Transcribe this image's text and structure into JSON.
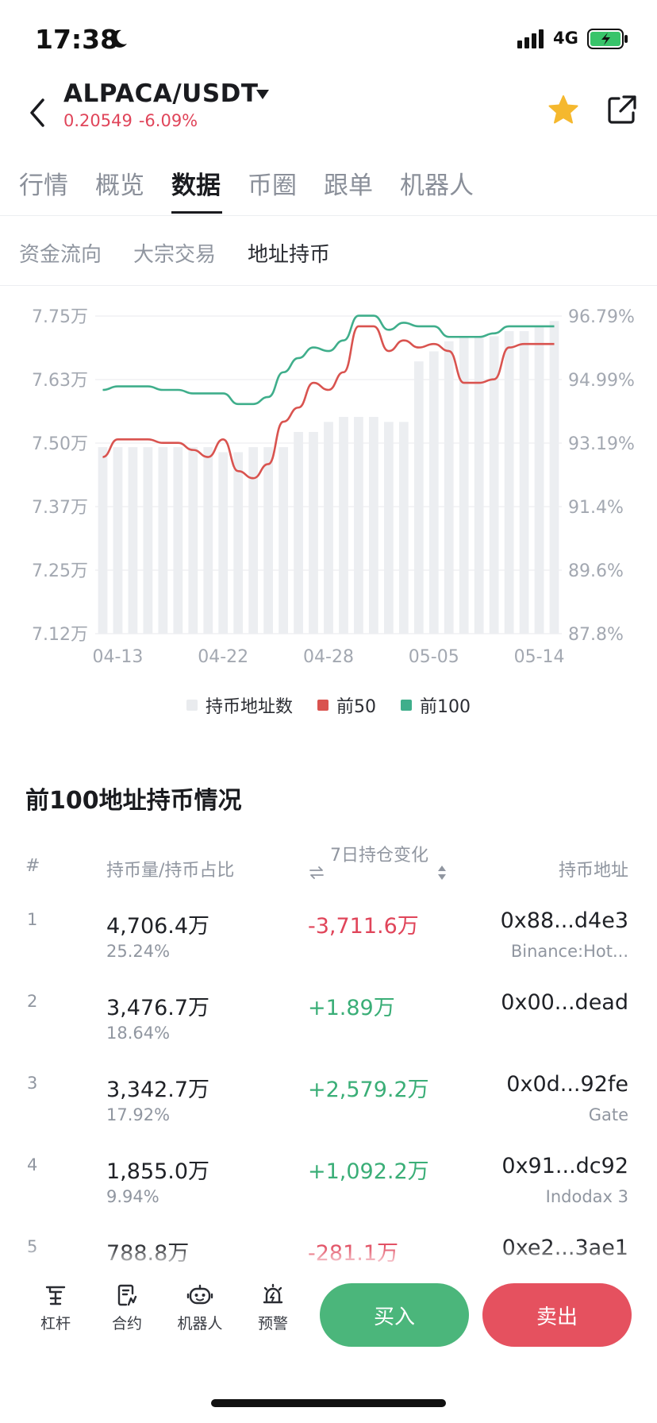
{
  "status_bar": {
    "time": "17:38",
    "network": "4G"
  },
  "header": {
    "pair": "ALPACA/USDT",
    "price": "0.20549",
    "change": "-6.09%"
  },
  "main_tabs": [
    "行情",
    "概览",
    "数据",
    "币圈",
    "跟单",
    "机器人"
  ],
  "sub_tabs": [
    "资金流向",
    "大宗交易",
    "地址持币"
  ],
  "colors": {
    "bar": "#eceef1",
    "top50": "#d9534f",
    "top100": "#3fae8b",
    "positive": "#3aae77",
    "negative": "#e0455a",
    "buy": "#4bb67b",
    "sell": "#e5515f"
  },
  "chart_data": {
    "type": "bar",
    "left_axis": {
      "ticks": [
        "7.12万",
        "7.25万",
        "7.37万",
        "7.50万",
        "7.63万",
        "7.75万"
      ],
      "ylim": [
        7.12,
        7.75
      ]
    },
    "right_axis": {
      "ticks": [
        "87.8%",
        "89.6%",
        "91.4%",
        "93.19%",
        "94.99%",
        "96.79%"
      ],
      "ylim": [
        87.8,
        96.79
      ]
    },
    "x_ticks": [
      "04-13",
      "04-22",
      "04-28",
      "05-05",
      "05-14"
    ],
    "categories_count": 31,
    "series": [
      {
        "name": "持币地址数",
        "type": "bar",
        "axis": "left",
        "values": [
          7.49,
          7.49,
          7.49,
          7.49,
          7.49,
          7.49,
          7.49,
          7.49,
          7.48,
          7.48,
          7.49,
          7.49,
          7.49,
          7.52,
          7.52,
          7.54,
          7.55,
          7.55,
          7.55,
          7.54,
          7.54,
          7.66,
          7.68,
          7.7,
          7.71,
          7.71,
          7.71,
          7.72,
          7.72,
          7.73,
          7.74
        ]
      },
      {
        "name": "前50",
        "type": "line",
        "axis": "right",
        "values": [
          92.8,
          93.3,
          93.3,
          93.3,
          93.2,
          93.2,
          93.0,
          92.8,
          93.3,
          92.4,
          92.2,
          92.6,
          93.8,
          94.2,
          94.9,
          94.7,
          95.2,
          96.5,
          96.5,
          95.8,
          96.1,
          95.9,
          96.0,
          95.8,
          94.9,
          94.9,
          95.0,
          95.9,
          96.0,
          96.0,
          96.0
        ]
      },
      {
        "name": "前100",
        "type": "line",
        "axis": "right",
        "values": [
          94.7,
          94.8,
          94.8,
          94.8,
          94.7,
          94.7,
          94.6,
          94.6,
          94.6,
          94.3,
          94.3,
          94.5,
          95.2,
          95.6,
          95.9,
          95.8,
          96.1,
          96.8,
          96.8,
          96.4,
          96.6,
          96.5,
          96.5,
          96.2,
          96.2,
          96.2,
          96.3,
          96.5,
          96.5,
          96.5,
          96.5
        ]
      }
    ]
  },
  "holders": {
    "title": "前100地址持币情况",
    "columns": {
      "rank": "#",
      "amount": "持币量/持币占比",
      "change": "7日持仓变化",
      "address": "持币地址"
    },
    "rows": [
      {
        "rank": "1",
        "amount": "4,706.4万",
        "pct": "25.24%",
        "change": "-3,711.6万",
        "dir": "neg",
        "address": "0x88...d4e3",
        "tag": "Binance:Hot..."
      },
      {
        "rank": "2",
        "amount": "3,476.7万",
        "pct": "18.64%",
        "change": "+1.89万",
        "dir": "pos",
        "address": "0x00...dead",
        "tag": ""
      },
      {
        "rank": "3",
        "amount": "3,342.7万",
        "pct": "17.92%",
        "change": "+2,579.2万",
        "dir": "pos",
        "address": "0x0d...92fe",
        "tag": "Gate"
      },
      {
        "rank": "4",
        "amount": "1,855.0万",
        "pct": "9.94%",
        "change": "+1,092.2万",
        "dir": "pos",
        "address": "0x91...dc92",
        "tag": "Indodax 3"
      },
      {
        "rank": "5",
        "amount": "788.8万",
        "pct": "",
        "change": "-281.1万",
        "dir": "neg",
        "address": "0xe2...3ae1",
        "tag": ""
      }
    ]
  },
  "bottom": {
    "tools": [
      {
        "label": "杠杆",
        "icon": "leverage-icon"
      },
      {
        "label": "合约",
        "icon": "contract-icon"
      },
      {
        "label": "机器人",
        "icon": "robot-icon"
      },
      {
        "label": "预警",
        "icon": "alert-icon"
      }
    ],
    "buy": "买入",
    "sell": "卖出"
  }
}
